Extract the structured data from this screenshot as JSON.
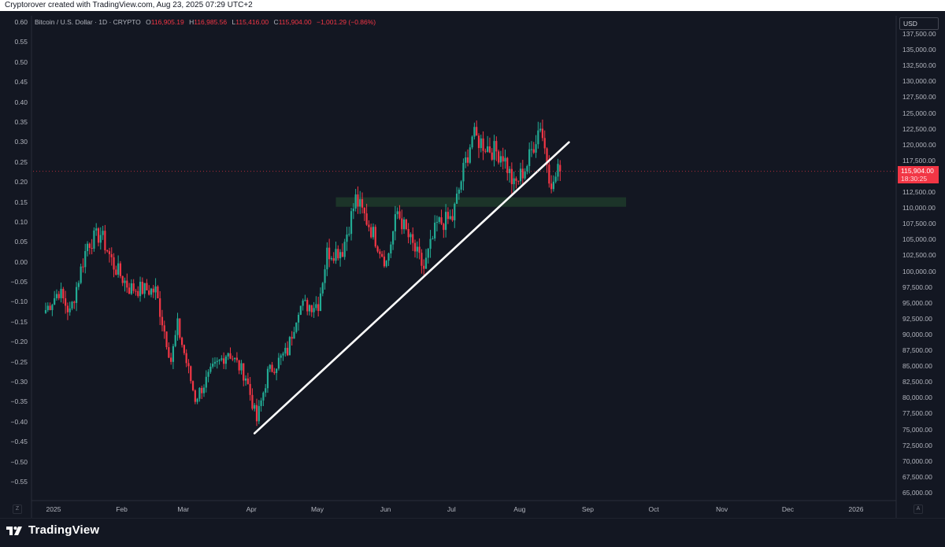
{
  "header": {
    "caption": "Cryptorover created with TradingView.com, Aug 23, 2025 07:29 UTC+2"
  },
  "symbol": {
    "name": "Bitcoin / U.S. Dollar · 1D · CRYPTO",
    "open_label": "O",
    "open": "116,905.19",
    "high_label": "H",
    "high": "116,985.56",
    "low_label": "L",
    "low": "115,416.00",
    "close_label": "C",
    "close": "115,904.00",
    "change": "−1,001.29 (−0.86%)"
  },
  "price_axis": {
    "currency": "USD",
    "last_price": "115,904.00",
    "countdown": "18:30:25",
    "ticks": [
      "137,500.00",
      "135,000.00",
      "132,500.00",
      "130,000.00",
      "127,500.00",
      "125,000.00",
      "122,500.00",
      "120,000.00",
      "117,500.00",
      "112,500.00",
      "110,000.00",
      "107,500.00",
      "105,000.00",
      "102,500.00",
      "100,000.00",
      "97,500.00",
      "95,000.00",
      "92,500.00",
      "90,000.00",
      "87,500.00",
      "85,000.00",
      "82,500.00",
      "80,000.00",
      "77,500.00",
      "75,000.00",
      "72,500.00",
      "70,000.00",
      "67,500.00",
      "65,000.00"
    ]
  },
  "left_axis": {
    "ticks": [
      "0.60",
      "0.55",
      "0.50",
      "0.45",
      "0.40",
      "0.35",
      "0.30",
      "0.25",
      "0.20",
      "0.15",
      "0.10",
      "0.05",
      "0.00",
      "−0.05",
      "−0.10",
      "−0.15",
      "−0.20",
      "−0.25",
      "−0.30",
      "−0.35",
      "−0.40",
      "−0.45",
      "−0.50",
      "−0.55"
    ]
  },
  "time_axis": {
    "ticks": [
      "2025",
      "Feb",
      "Mar",
      "Apr",
      "May",
      "Jun",
      "Jul",
      "Aug",
      "Sep",
      "Oct",
      "Nov",
      "Dec",
      "2026"
    ]
  },
  "footer": {
    "brand": "TradingView",
    "left_btn": "Z",
    "right_btn": "A"
  },
  "colors": {
    "background": "#131722",
    "up": "#22ab94",
    "down": "#f23645",
    "zone": "#1f3a2a",
    "trendline": "#ffffff",
    "text": "#b2b5be"
  },
  "chart_data": {
    "type": "candlestick",
    "interval": "1D",
    "y_axis_right": {
      "min": 65000,
      "max": 137500,
      "unit": "USD"
    },
    "y_axis_left": {
      "min": -0.55,
      "max": 0.6
    },
    "x_range": [
      "2025-01-01",
      "2026-01-01"
    ],
    "approx_close_path": [
      {
        "date": "2025-01-01",
        "close": 94000
      },
      {
        "date": "2025-01-07",
        "close": 97000
      },
      {
        "date": "2025-01-12",
        "close": 93500
      },
      {
        "date": "2025-01-20",
        "close": 104500
      },
      {
        "date": "2025-01-26",
        "close": 106000
      },
      {
        "date": "2025-02-01",
        "close": 101000
      },
      {
        "date": "2025-02-08",
        "close": 97500
      },
      {
        "date": "2025-02-20",
        "close": 97000
      },
      {
        "date": "2025-02-27",
        "close": 86000
      },
      {
        "date": "2025-03-02",
        "close": 91500
      },
      {
        "date": "2025-03-10",
        "close": 80000
      },
      {
        "date": "2025-03-18",
        "close": 84500
      },
      {
        "date": "2025-03-25",
        "close": 87500
      },
      {
        "date": "2025-04-02",
        "close": 83500
      },
      {
        "date": "2025-04-07",
        "close": 76500
      },
      {
        "date": "2025-04-12",
        "close": 84000
      },
      {
        "date": "2025-04-21",
        "close": 87500
      },
      {
        "date": "2025-04-26",
        "close": 94500
      },
      {
        "date": "2025-05-05",
        "close": 95000
      },
      {
        "date": "2025-05-09",
        "close": 103000
      },
      {
        "date": "2025-05-16",
        "close": 103500
      },
      {
        "date": "2025-05-22",
        "close": 111500
      },
      {
        "date": "2025-05-28",
        "close": 107500
      },
      {
        "date": "2025-06-05",
        "close": 101500
      },
      {
        "date": "2025-06-10",
        "close": 109500
      },
      {
        "date": "2025-06-15",
        "close": 105500
      },
      {
        "date": "2025-06-22",
        "close": 100500
      },
      {
        "date": "2025-06-28",
        "close": 107500
      },
      {
        "date": "2025-07-05",
        "close": 108500
      },
      {
        "date": "2025-07-10",
        "close": 116000
      },
      {
        "date": "2025-07-14",
        "close": 121500
      },
      {
        "date": "2025-07-22",
        "close": 119500
      },
      {
        "date": "2025-07-28",
        "close": 118500
      },
      {
        "date": "2025-08-02",
        "close": 113500
      },
      {
        "date": "2025-08-08",
        "close": 117000
      },
      {
        "date": "2025-08-14",
        "close": 123500
      },
      {
        "date": "2025-08-18",
        "close": 115500
      },
      {
        "date": "2025-08-20",
        "close": 113500
      },
      {
        "date": "2025-08-22",
        "close": 116905
      },
      {
        "date": "2025-08-23",
        "close": 115904
      }
    ],
    "annotations": {
      "support_zone": {
        "from_date": "2025-05-13",
        "to_date": "2025-09-22",
        "price_low": 110300,
        "price_high": 111800
      },
      "trendline": {
        "start": {
          "date": "2025-04-06",
          "price": 74500
        },
        "end": {
          "date": "2025-08-27",
          "price": 120500
        }
      }
    }
  }
}
